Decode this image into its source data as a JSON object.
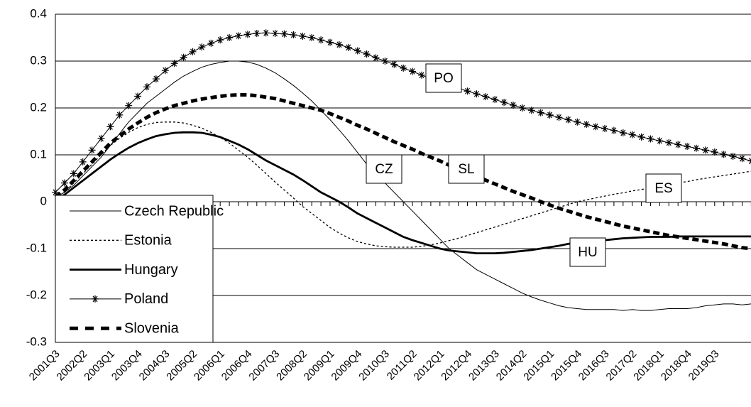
{
  "chart_data": {
    "type": "line",
    "categories": [
      "2001Q3",
      null,
      null,
      "2002Q2",
      null,
      null,
      "2003Q1",
      null,
      null,
      "2003Q4",
      null,
      null,
      "2004Q3",
      null,
      null,
      "2005Q2",
      null,
      null,
      "2006Q1",
      null,
      null,
      "2006Q4",
      null,
      null,
      "2007Q3",
      null,
      null,
      "2008Q2",
      null,
      null,
      "2009Q1",
      null,
      null,
      "2009Q4",
      null,
      null,
      "2010Q3",
      null,
      null,
      "2011Q2",
      null,
      null,
      "2012Q1",
      null,
      null,
      "2012Q4",
      null,
      null,
      "2013Q3",
      null,
      null,
      "2014Q2",
      null,
      null,
      "2015Q1",
      null,
      null,
      "2015Q4",
      null,
      null,
      "2016Q3",
      null,
      null,
      "2017Q2",
      null,
      null,
      "2018Q1",
      null,
      null,
      "2018Q4",
      null,
      null,
      "2019Q3",
      null,
      null,
      null,
      null
    ],
    "series": [
      {
        "name": "Czech Republic",
        "color": "#000000",
        "style": "thin",
        "values": [
          0.01,
          0.02,
          0.035,
          0.055,
          0.075,
          0.095,
          0.12,
          0.145,
          0.17,
          0.19,
          0.21,
          0.225,
          0.24,
          0.255,
          0.268,
          0.278,
          0.287,
          0.293,
          0.297,
          0.3,
          0.3,
          0.298,
          0.293,
          0.285,
          0.275,
          0.262,
          0.248,
          0.232,
          0.215,
          0.195,
          0.175,
          0.153,
          0.13,
          0.105,
          0.08,
          0.06,
          0.04,
          0.02,
          0.0,
          -0.02,
          -0.04,
          -0.06,
          -0.08,
          -0.1,
          -0.115,
          -0.13,
          -0.145,
          -0.155,
          -0.165,
          -0.175,
          -0.185,
          -0.195,
          -0.203,
          -0.21,
          -0.216,
          -0.222,
          -0.226,
          -0.228,
          -0.23,
          -0.23,
          -0.23,
          -0.23,
          -0.232,
          -0.23,
          -0.232,
          -0.232,
          -0.23,
          -0.228,
          -0.228,
          -0.228,
          -0.226,
          -0.222,
          -0.22,
          -0.218,
          -0.218,
          -0.22,
          -0.218
        ]
      },
      {
        "name": "Estonia",
        "color": "#000000",
        "style": "dotted",
        "values": [
          0.01,
          0.02,
          0.04,
          0.06,
          0.08,
          0.1,
          0.12,
          0.135,
          0.148,
          0.158,
          0.165,
          0.169,
          0.17,
          0.17,
          0.168,
          0.163,
          0.157,
          0.148,
          0.137,
          0.125,
          0.11,
          0.095,
          0.078,
          0.06,
          0.042,
          0.025,
          0.008,
          -0.01,
          -0.025,
          -0.04,
          -0.055,
          -0.067,
          -0.077,
          -0.085,
          -0.09,
          -0.094,
          -0.096,
          -0.097,
          -0.097,
          -0.097,
          -0.095,
          -0.092,
          -0.088,
          -0.083,
          -0.078,
          -0.072,
          -0.066,
          -0.06,
          -0.054,
          -0.048,
          -0.042,
          -0.036,
          -0.03,
          -0.024,
          -0.018,
          -0.012,
          -0.006,
          0.0,
          0.004,
          0.008,
          0.012,
          0.016,
          0.019,
          0.023,
          0.026,
          0.03,
          0.033,
          0.037,
          0.04,
          0.043,
          0.047,
          0.05,
          0.053,
          0.056,
          0.059,
          0.062,
          0.065
        ]
      },
      {
        "name": "Hungary",
        "color": "#000000",
        "style": "thick",
        "values": [
          0.005,
          0.015,
          0.03,
          0.045,
          0.06,
          0.075,
          0.09,
          0.103,
          0.115,
          0.125,
          0.133,
          0.14,
          0.144,
          0.147,
          0.148,
          0.148,
          0.147,
          0.143,
          0.138,
          0.13,
          0.122,
          0.112,
          0.1,
          0.088,
          0.078,
          0.068,
          0.058,
          0.046,
          0.033,
          0.02,
          0.01,
          0.0,
          -0.012,
          -0.025,
          -0.035,
          -0.045,
          -0.055,
          -0.065,
          -0.075,
          -0.082,
          -0.088,
          -0.094,
          -0.1,
          -0.104,
          -0.106,
          -0.108,
          -0.11,
          -0.11,
          -0.11,
          -0.109,
          -0.107,
          -0.105,
          -0.103,
          -0.1,
          -0.097,
          -0.094,
          -0.09,
          -0.087,
          -0.085,
          -0.084,
          -0.082,
          -0.08,
          -0.078,
          -0.077,
          -0.076,
          -0.075,
          -0.075,
          -0.075,
          -0.074,
          -0.074,
          -0.074,
          -0.074,
          -0.074,
          -0.074,
          -0.074,
          -0.074,
          -0.074
        ]
      },
      {
        "name": "Poland",
        "color": "#000000",
        "style": "star",
        "values": [
          0.02,
          0.04,
          0.06,
          0.085,
          0.11,
          0.135,
          0.16,
          0.185,
          0.205,
          0.225,
          0.245,
          0.262,
          0.28,
          0.295,
          0.308,
          0.32,
          0.33,
          0.338,
          0.345,
          0.35,
          0.354,
          0.357,
          0.359,
          0.36,
          0.359,
          0.358,
          0.356,
          0.353,
          0.35,
          0.345,
          0.34,
          0.335,
          0.329,
          0.322,
          0.315,
          0.307,
          0.3,
          0.293,
          0.285,
          0.278,
          0.27,
          0.262,
          0.255,
          0.248,
          0.242,
          0.236,
          0.23,
          0.224,
          0.218,
          0.212,
          0.206,
          0.2,
          0.195,
          0.19,
          0.185,
          0.18,
          0.175,
          0.17,
          0.165,
          0.16,
          0.156,
          0.152,
          0.147,
          0.143,
          0.138,
          0.134,
          0.13,
          0.126,
          0.122,
          0.118,
          0.114,
          0.11,
          0.106,
          0.101,
          0.097,
          0.092,
          0.087
        ]
      },
      {
        "name": "Slovenia",
        "color": "#000000",
        "style": "dashed",
        "values": [
          0.01,
          0.025,
          0.045,
          0.065,
          0.085,
          0.105,
          0.125,
          0.14,
          0.155,
          0.168,
          0.18,
          0.19,
          0.198,
          0.205,
          0.21,
          0.215,
          0.219,
          0.222,
          0.225,
          0.227,
          0.228,
          0.228,
          0.226,
          0.223,
          0.22,
          0.215,
          0.21,
          0.205,
          0.2,
          0.195,
          0.188,
          0.18,
          0.172,
          0.163,
          0.155,
          0.146,
          0.137,
          0.128,
          0.12,
          0.112,
          0.103,
          0.095,
          0.087,
          0.078,
          0.07,
          0.062,
          0.054,
          0.046,
          0.038,
          0.03,
          0.022,
          0.015,
          0.008,
          0.0,
          -0.007,
          -0.014,
          -0.02,
          -0.026,
          -0.032,
          -0.037,
          -0.042,
          -0.047,
          -0.052,
          -0.056,
          -0.06,
          -0.064,
          -0.068,
          -0.072,
          -0.075,
          -0.078,
          -0.081,
          -0.084,
          -0.087,
          -0.09,
          -0.094,
          -0.098,
          -0.1
        ]
      }
    ],
    "annotations": [
      "PO",
      "CZ",
      "SL",
      "ES",
      "HU"
    ],
    "ylim": [
      -0.3,
      0.4
    ],
    "yticks": [
      -0.3,
      -0.2,
      -0.1,
      0,
      0.1,
      0.2,
      0.3,
      0.4
    ],
    "grid": true,
    "legend": "lower left"
  }
}
